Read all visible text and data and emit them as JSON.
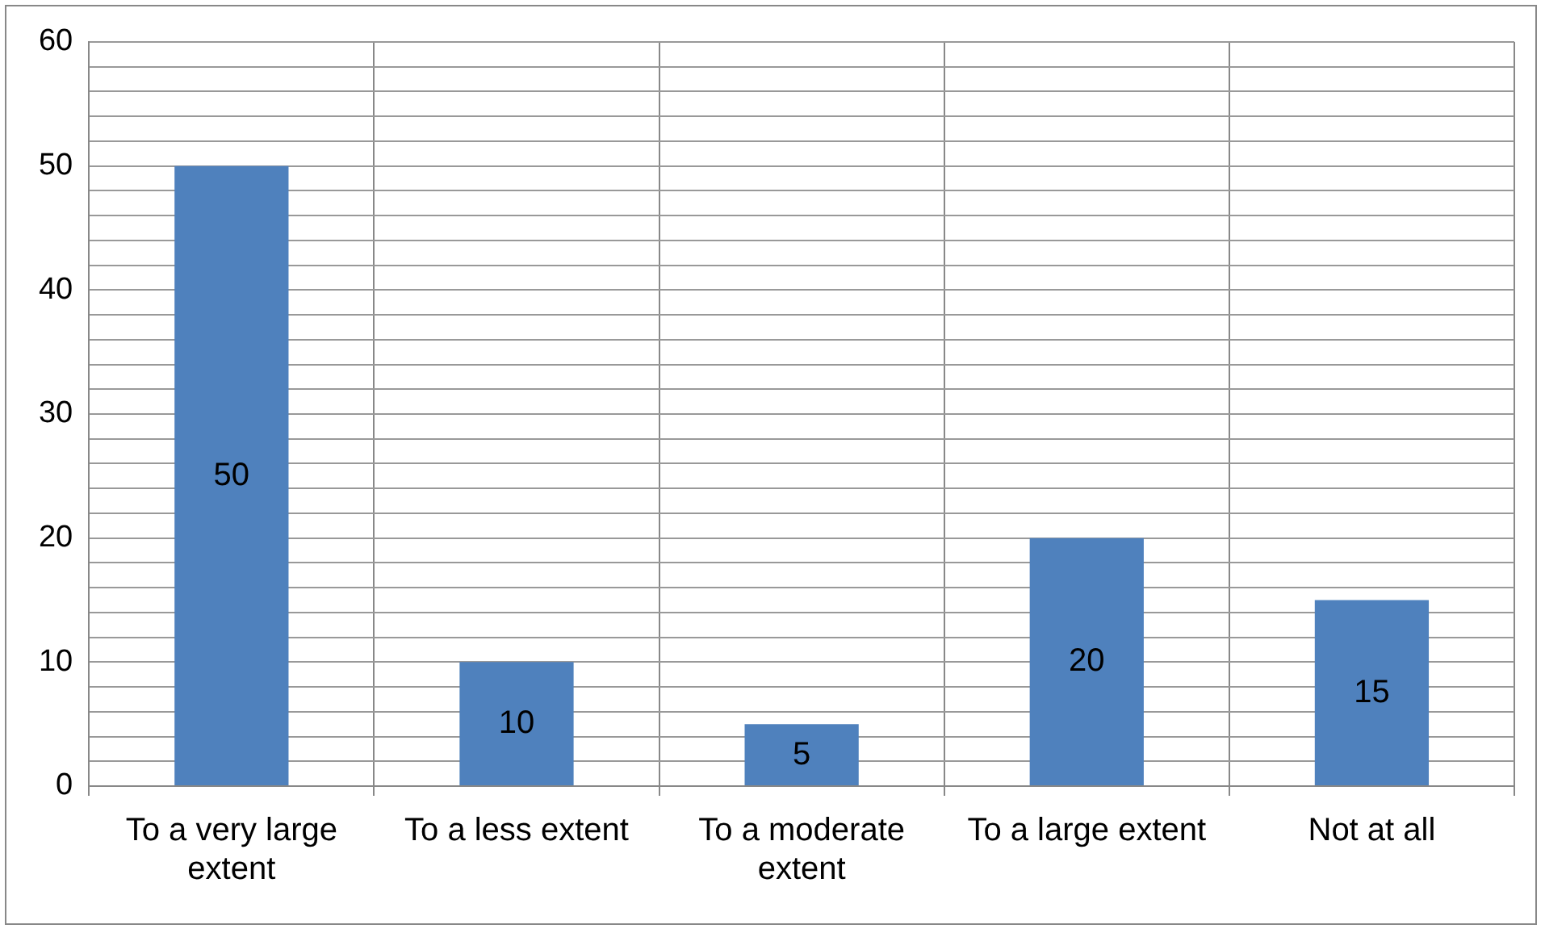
{
  "chart_data": {
    "type": "bar",
    "categories": [
      "To a very large extent",
      "To a less extent",
      "To a moderate extent",
      "To a large extent",
      "Not at all"
    ],
    "values": [
      50,
      10,
      5,
      20,
      15
    ],
    "color": "#4f81bd",
    "ylim": [
      0,
      60
    ],
    "yticks": [
      0,
      {
        "value": 2,
        "label": null
      },
      {
        "value": 4,
        "label": null
      },
      {
        "value": 6,
        "label": null
      },
      {
        "value": 8,
        "label": null
      },
      10,
      {
        "value": 12,
        "label": null
      },
      {
        "value": 14,
        "label": null
      },
      {
        "value": 16,
        "label": null
      },
      {
        "value": 18,
        "label": null
      },
      20,
      {
        "value": 22,
        "label": null
      },
      {
        "value": 24,
        "label": null
      },
      {
        "value": 26,
        "label": null
      },
      {
        "value": 28,
        "label": null
      },
      30,
      {
        "value": 32,
        "label": null
      },
      {
        "value": 34,
        "label": null
      },
      {
        "value": 36,
        "label": null
      },
      {
        "value": 38,
        "label": null
      },
      40,
      {
        "value": 42,
        "label": null
      },
      {
        "value": 44,
        "label": null
      },
      {
        "value": 46,
        "label": null
      },
      {
        "value": 48,
        "label": null
      },
      50,
      {
        "value": 52,
        "label": null
      },
      {
        "value": 54,
        "label": null
      },
      {
        "value": 56,
        "label": null
      },
      {
        "value": 58,
        "label": null
      },
      60
    ],
    "grid": true,
    "data_labels": true,
    "legend": false
  }
}
